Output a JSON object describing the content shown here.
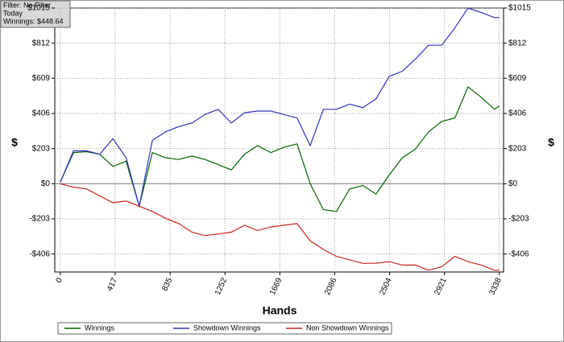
{
  "info": {
    "filter": "Filter: No Filter",
    "period": "Today",
    "winnings": "Winnings: $448.64"
  },
  "chart_data": {
    "type": "line",
    "xlabel": "Hands",
    "ylabel": "$",
    "x": [
      0,
      100,
      200,
      300,
      400,
      500,
      600,
      700,
      800,
      900,
      1000,
      1100,
      1200,
      1300,
      1400,
      1500,
      1600,
      1700,
      1800,
      1900,
      2000,
      2100,
      2200,
      2300,
      2400,
      2500,
      2600,
      2700,
      2800,
      2900,
      3000,
      3100,
      3200,
      3300,
      3338
    ],
    "series": [
      {
        "name": "Winnings",
        "color": "#006400",
        "values": [
          10,
          180,
          185,
          170,
          100,
          130,
          -130,
          180,
          150,
          140,
          160,
          140,
          110,
          80,
          170,
          220,
          180,
          210,
          230,
          0,
          -150,
          -160,
          -30,
          -10,
          -60,
          50,
          150,
          200,
          300,
          360,
          380,
          560,
          500,
          430,
          448.64
        ]
      },
      {
        "name": "Showdown Winnings",
        "color": "#3333bb",
        "values": [
          10,
          190,
          190,
          170,
          260,
          150,
          -130,
          250,
          300,
          330,
          350,
          400,
          430,
          350,
          410,
          420,
          420,
          400,
          380,
          220,
          430,
          430,
          460,
          440,
          490,
          620,
          650,
          720,
          800,
          800,
          900,
          1015,
          990,
          960,
          960
        ]
      },
      {
        "name": "Non Showdown Winnings",
        "color": "#cc2222",
        "values": [
          0,
          -20,
          -30,
          -70,
          -110,
          -100,
          -130,
          -160,
          -200,
          -230,
          -280,
          -300,
          -290,
          -280,
          -240,
          -270,
          -250,
          -240,
          -230,
          -330,
          -380,
          -420,
          -440,
          -460,
          -460,
          -450,
          -470,
          -470,
          -500,
          -480,
          -420,
          -450,
          -470,
          -500,
          -500
        ]
      }
    ],
    "xlim": [
      -42,
      3370
    ],
    "xticks": [
      0,
      417,
      835,
      1252,
      1669,
      2086,
      2504,
      2921,
      3338
    ],
    "ylim": [
      -510,
      1015
    ],
    "yticks": [
      {
        "value": -406,
        "label": "-$406"
      },
      {
        "value": -203,
        "label": "-$203"
      },
      {
        "value": 0,
        "label": "$0"
      },
      {
        "value": 203,
        "label": "$203"
      },
      {
        "value": 406,
        "label": "$406"
      },
      {
        "value": 609,
        "label": "$609"
      },
      {
        "value": 812,
        "label": "$812"
      },
      {
        "value": 1015,
        "label": "$1015"
      }
    ],
    "grid": true,
    "legend": "bottom"
  }
}
